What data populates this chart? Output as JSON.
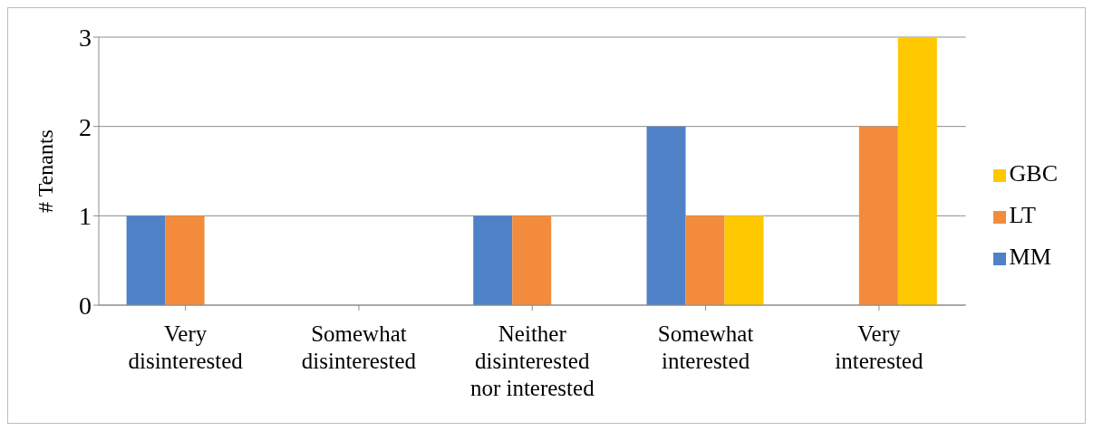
{
  "chart_data": {
    "type": "bar",
    "ylabel": "# Tenants",
    "categories": [
      "Very disinterested",
      "Somewhat disinterested",
      "Neither disinterested nor interested",
      "Somewhat interested",
      "Very interested"
    ],
    "series": [
      {
        "name": "MM",
        "color": "#4f81c7",
        "values": [
          1,
          0,
          1,
          2,
          0
        ]
      },
      {
        "name": "LT",
        "color": "#f28c3c",
        "values": [
          1,
          0,
          1,
          1,
          2
        ]
      },
      {
        "name": "GBC",
        "color": "#ffc800",
        "values": [
          0,
          0,
          0,
          1,
          3
        ]
      }
    ],
    "ylim": [
      0,
      3
    ],
    "yticks": [
      0,
      1,
      2,
      3
    ],
    "grid": "y",
    "legend": "right"
  }
}
